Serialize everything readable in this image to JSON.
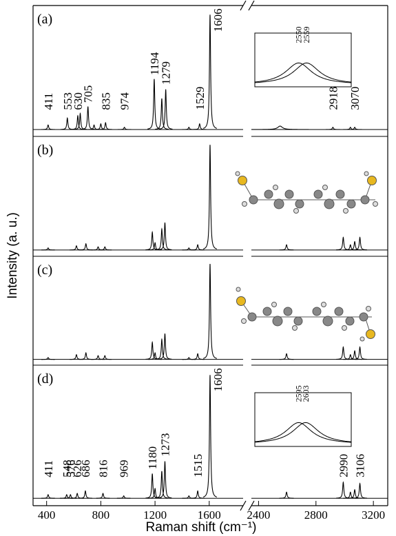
{
  "chart_data": {
    "type": "line",
    "xlabel": "Raman shift (cm⁻¹)",
    "ylabel": "Intensity (a. u.)",
    "xlim": [
      300,
      1850
    ],
    "x2lim": [
      2350,
      3300
    ],
    "xticks": [
      400,
      800,
      1200,
      1600
    ],
    "x2ticks": [
      2400,
      2800,
      3200
    ],
    "color": "#000000",
    "panels": [
      {
        "label": "(a)",
        "ylim": [
          -0.06,
          1.08
        ],
        "x": [
          411,
          553,
          630,
          648,
          705,
          750,
          800,
          835,
          974,
          1194,
          1250,
          1279,
          1450,
          1529,
          1606,
          2550,
          2918,
          3040,
          3070
        ],
        "values": [
          0.04,
          0.1,
          0.12,
          0.14,
          0.2,
          0.04,
          0.05,
          0.06,
          0.02,
          0.44,
          0.27,
          0.35,
          0.02,
          0.05,
          1.0,
          0.03,
          0.02,
          0.02,
          0.02
        ],
        "peak_labels": [
          411,
          553,
          630,
          705,
          835,
          974,
          1194,
          1279,
          1529,
          1606,
          2918,
          3070
        ],
        "inset": {
          "x": [
            2550,
            2559
          ],
          "values": [
            1,
            1
          ],
          "xlim": [
            2500,
            2610
          ],
          "ylim": [
            -0.1,
            2.2
          ],
          "labels": [
            2550,
            2559
          ]
        }
      },
      {
        "label": "(b)",
        "ylim": [
          -0.06,
          1.08
        ],
        "x": [
          411,
          620,
          690,
          780,
          830,
          1180,
          1200,
          1250,
          1273,
          1450,
          1515,
          1606,
          2595,
          2990,
          3040,
          3070,
          3106
        ],
        "values": [
          0.02,
          0.04,
          0.06,
          0.03,
          0.03,
          0.17,
          0.07,
          0.2,
          0.26,
          0.02,
          0.05,
          1.0,
          0.05,
          0.12,
          0.05,
          0.08,
          0.12
        ]
      },
      {
        "label": "(c)",
        "ylim": [
          -0.06,
          1.08
        ],
        "x": [
          411,
          620,
          690,
          780,
          830,
          1180,
          1200,
          1250,
          1273,
          1450,
          1515,
          1606,
          2595,
          2990,
          3040,
          3070,
          3106
        ],
        "values": [
          0.02,
          0.05,
          0.07,
          0.04,
          0.04,
          0.18,
          0.07,
          0.21,
          0.27,
          0.02,
          0.06,
          1.0,
          0.06,
          0.13,
          0.05,
          0.09,
          0.13
        ]
      },
      {
        "label": "(d)",
        "ylim": [
          -0.06,
          1.08
        ],
        "x": [
          411,
          548,
          576,
          626,
          686,
          816,
          969,
          1180,
          1200,
          1250,
          1273,
          1450,
          1515,
          1606,
          2595,
          2990,
          3040,
          3070,
          3106
        ],
        "values": [
          0.03,
          0.03,
          0.03,
          0.04,
          0.06,
          0.04,
          0.02,
          0.2,
          0.08,
          0.22,
          0.3,
          0.02,
          0.06,
          1.0,
          0.05,
          0.13,
          0.05,
          0.07,
          0.12
        ],
        "peak_labels": [
          411,
          548,
          576,
          626,
          686,
          816,
          969,
          1180,
          1273,
          1515,
          1606,
          2990,
          3106
        ],
        "inset": {
          "x": [
            2595,
            2603
          ],
          "values": [
            1,
            1
          ],
          "xlim": [
            2545,
            2655
          ],
          "ylim": [
            -0.1,
            2.2
          ],
          "labels": [
            2595,
            2603
          ]
        }
      }
    ]
  }
}
